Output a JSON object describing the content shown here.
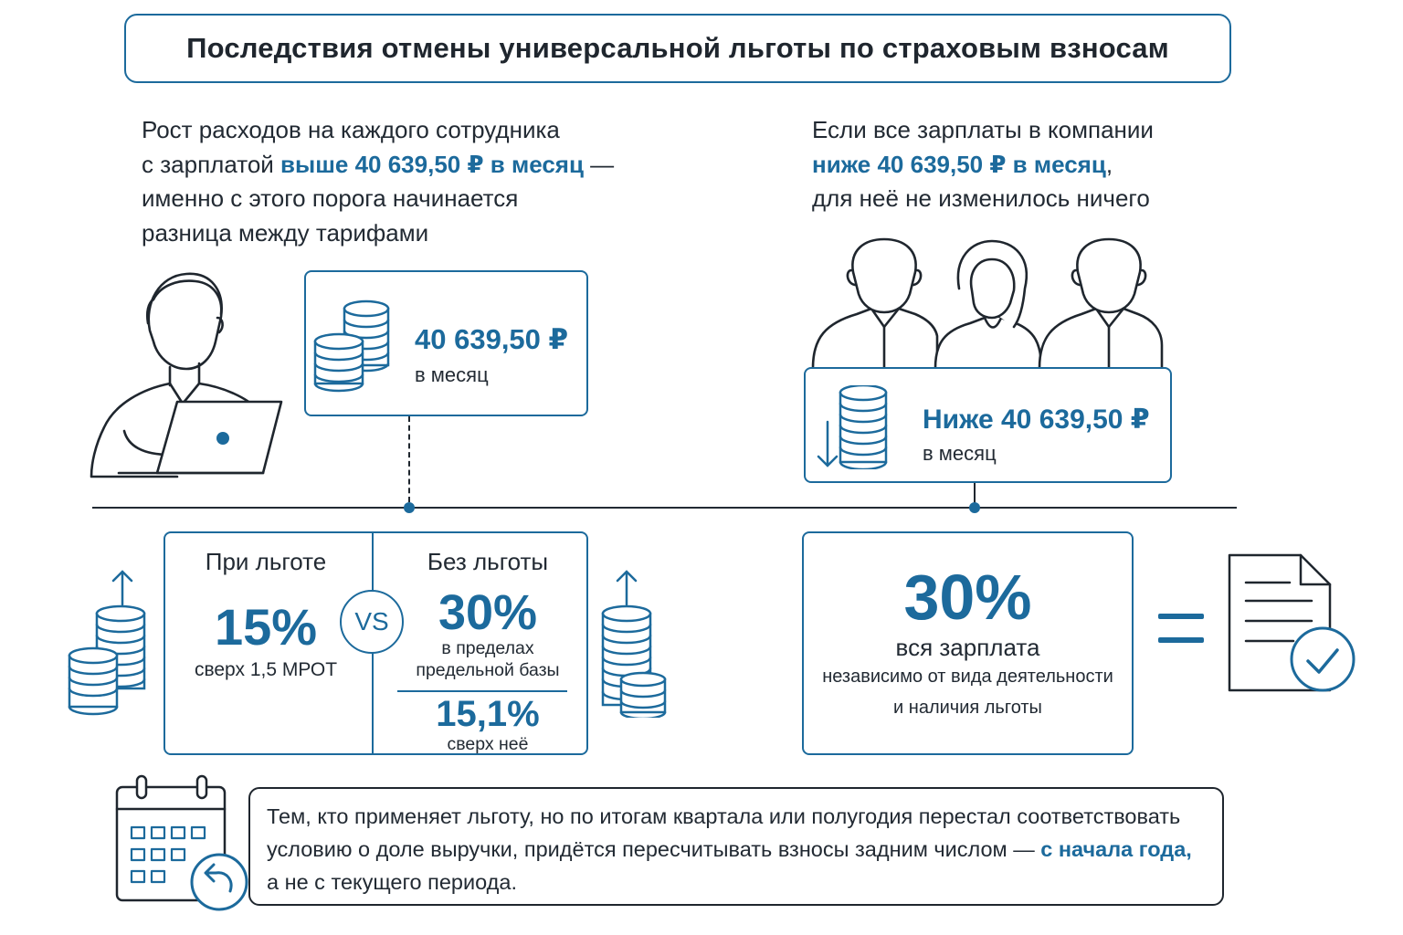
{
  "title": "Последствия отмены универсальной льготы по страховым взносам",
  "left_intro": {
    "line1": "Рост расходов на каждого сотрудника",
    "line2_prefix": "с зарплатой ",
    "line2_highlight": "выше 40 639,50 ₽ в месяц",
    "line2_suffix": " —",
    "line3": "именно с этого порога начинается",
    "line4": "разница между тарифами"
  },
  "right_intro": {
    "line1": "Если все зарплаты в компании",
    "line2_highlight": "ниже 40 639,50 ₽ в месяц",
    "line2_suffix": ",",
    "line3": "для неё не изменилось ничего"
  },
  "threshold_card": {
    "amount": "40 639,50 ₽",
    "period": "в месяц"
  },
  "below_card": {
    "amount": "Ниже 40 639,50 ₽",
    "period": "в месяц"
  },
  "comparison": {
    "with_benefit": {
      "heading": "При льготе",
      "rate": "15%",
      "note": "сверх 1,5 МРОТ"
    },
    "vs_label": "VS",
    "without_benefit": {
      "heading": "Без льготы",
      "rate": "30%",
      "note_line1": "в пределах",
      "note_line2": "предельной базы",
      "rate2": "15,1%",
      "note2": "сверх неё"
    }
  },
  "flat_rate": {
    "rate": "30%",
    "line1": "вся зарплата",
    "line2": "независимо от вида деятельности",
    "line3": "и наличия льготы"
  },
  "equals_sign": "=",
  "notice": {
    "line1": "Тем, кто применяет льготу, но по итогам квартала или полугодия перестал соответствовать",
    "line2_prefix": "условию о доле выручки, придётся пересчитывать взносы задним числом — ",
    "line2_highlight": "с начала года,",
    "line3": "а не с текущего периода."
  },
  "colors": {
    "accent": "#1c6a9c",
    "text": "#222a33",
    "outline": "#1f262e"
  },
  "icons": [
    "person-laptop-icon",
    "coins-stack-icon",
    "group-of-people-icon",
    "coins-down-arrow-icon",
    "coins-up-arrow-icon",
    "document-check-icon",
    "calendar-return-icon"
  ]
}
